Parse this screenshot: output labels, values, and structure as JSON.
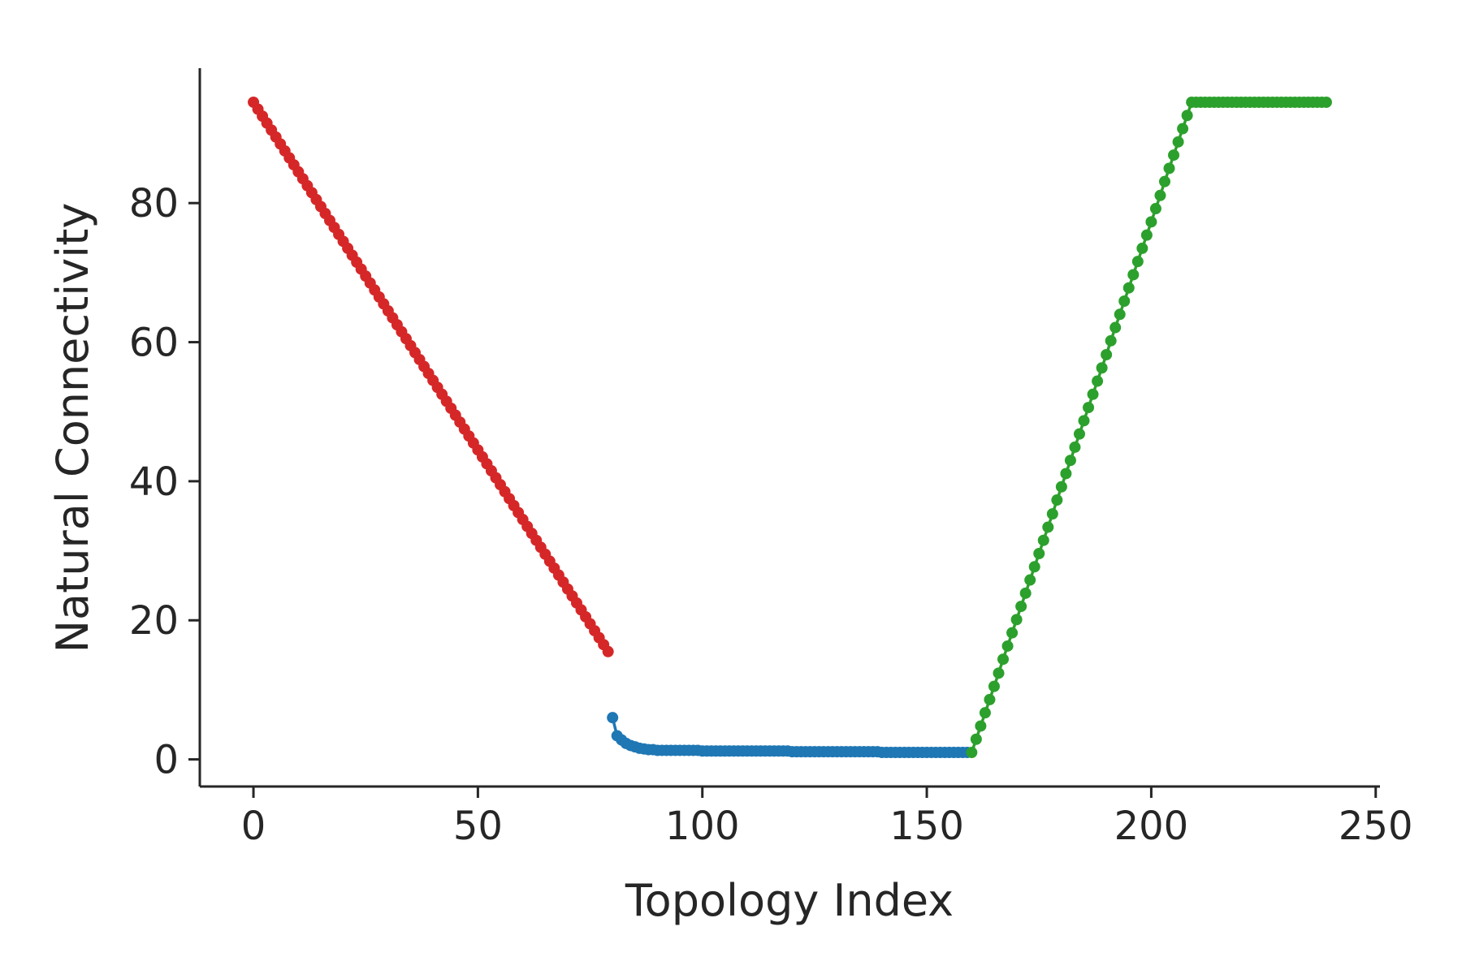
{
  "chart_data": {
    "type": "line",
    "xlabel": "Topology Index",
    "ylabel": "Natural Connectivity",
    "xlim": [
      -11.95,
      250.95
    ],
    "ylim": [
      -3.9,
      99.4
    ],
    "xticks": [
      0,
      50,
      100,
      150,
      200,
      250
    ],
    "yticks": [
      0,
      20,
      40,
      60,
      80
    ],
    "marker": "o",
    "series": [
      {
        "color": "#d62728",
        "x": [
          0,
          1,
          2,
          3,
          4,
          5,
          6,
          7,
          8,
          9,
          10,
          11,
          12,
          13,
          14,
          15,
          16,
          17,
          18,
          19,
          20,
          21,
          22,
          23,
          24,
          25,
          26,
          27,
          28,
          29,
          30,
          31,
          32,
          33,
          34,
          35,
          36,
          37,
          38,
          39,
          40,
          41,
          42,
          43,
          44,
          45,
          46,
          47,
          48,
          49,
          50,
          51,
          52,
          53,
          54,
          55,
          56,
          57,
          58,
          59,
          60,
          61,
          62,
          63,
          64,
          65,
          66,
          67,
          68,
          69,
          70,
          71,
          72,
          73,
          74,
          75,
          76,
          77,
          78,
          79
        ],
        "values": [
          94.5,
          93.5,
          92.5,
          91.5,
          90.5,
          89.5,
          88.5,
          87.5,
          86.5,
          85.5,
          84.5,
          83.5,
          82.5,
          81.5,
          80.5,
          79.5,
          78.5,
          77.5,
          76.5,
          75.5,
          74.5,
          73.5,
          72.5,
          71.5,
          70.5,
          69.5,
          68.5,
          67.5,
          66.5,
          65.5,
          64.5,
          63.5,
          62.5,
          61.5,
          60.5,
          59.5,
          58.5,
          57.5,
          56.5,
          55.5,
          54.5,
          53.5,
          52.5,
          51.5,
          50.5,
          49.5,
          48.5,
          47.5,
          46.5,
          45.5,
          44.5,
          43.5,
          42.5,
          41.5,
          40.5,
          39.5,
          38.5,
          37.5,
          36.5,
          35.5,
          34.5,
          33.5,
          32.5,
          31.5,
          30.5,
          29.5,
          28.5,
          27.5,
          26.5,
          25.5,
          24.5,
          23.5,
          22.5,
          21.5,
          20.5,
          19.5,
          18.5,
          17.5,
          16.5,
          15.5
        ]
      },
      {
        "color": "#1f77b4",
        "x": [
          80,
          81,
          82,
          83,
          84,
          85,
          86,
          87,
          88,
          89,
          90,
          91,
          92,
          93,
          94,
          95,
          96,
          97,
          98,
          99,
          100,
          101,
          102,
          103,
          104,
          105,
          106,
          107,
          108,
          109,
          110,
          111,
          112,
          113,
          114,
          115,
          116,
          117,
          118,
          119,
          120,
          121,
          122,
          123,
          124,
          125,
          126,
          127,
          128,
          129,
          130,
          131,
          132,
          133,
          134,
          135,
          136,
          137,
          138,
          139,
          140,
          141,
          142,
          143,
          144,
          145,
          146,
          147,
          148,
          149,
          150,
          151,
          152,
          153,
          154,
          155,
          156,
          157,
          158,
          159
        ],
        "values": [
          6.0,
          3.4,
          2.8,
          2.3,
          2.0,
          1.8,
          1.6,
          1.5,
          1.4,
          1.4,
          1.3,
          1.3,
          1.3,
          1.3,
          1.3,
          1.3,
          1.3,
          1.3,
          1.3,
          1.3,
          1.2,
          1.2,
          1.2,
          1.2,
          1.2,
          1.2,
          1.2,
          1.2,
          1.2,
          1.2,
          1.2,
          1.2,
          1.2,
          1.2,
          1.2,
          1.2,
          1.2,
          1.2,
          1.2,
          1.2,
          1.1,
          1.1,
          1.1,
          1.1,
          1.1,
          1.1,
          1.1,
          1.1,
          1.1,
          1.1,
          1.1,
          1.1,
          1.1,
          1.1,
          1.1,
          1.1,
          1.1,
          1.1,
          1.1,
          1.1,
          1.0,
          1.0,
          1.0,
          1.0,
          1.0,
          1.0,
          1.0,
          1.0,
          1.0,
          1.0,
          1.0,
          1.0,
          1.0,
          1.0,
          1.0,
          1.0,
          1.0,
          1.0,
          1.0,
          1.0
        ]
      },
      {
        "color": "#2ca02c",
        "x": [
          160,
          161,
          162,
          163,
          164,
          165,
          166,
          167,
          168,
          169,
          170,
          171,
          172,
          173,
          174,
          175,
          176,
          177,
          178,
          179,
          180,
          181,
          182,
          183,
          184,
          185,
          186,
          187,
          188,
          189,
          190,
          191,
          192,
          193,
          194,
          195,
          196,
          197,
          198,
          199,
          200,
          201,
          202,
          203,
          204,
          205,
          206,
          207,
          208,
          209,
          210,
          211,
          212,
          213,
          214,
          215,
          216,
          217,
          218,
          219,
          220,
          221,
          222,
          223,
          224,
          225,
          226,
          227,
          228,
          229,
          230,
          231,
          232,
          233,
          234,
          235,
          236,
          237,
          238,
          239
        ],
        "values": [
          1.0,
          2.9,
          4.8,
          6.7,
          8.6,
          10.5,
          12.4,
          14.4,
          16.3,
          18.2,
          20.1,
          22.0,
          23.9,
          25.8,
          27.7,
          29.6,
          31.5,
          33.4,
          35.3,
          37.3,
          39.2,
          41.1,
          43.0,
          44.9,
          46.8,
          48.7,
          50.6,
          52.5,
          54.4,
          56.3,
          58.2,
          60.2,
          62.1,
          64.0,
          65.9,
          67.8,
          69.7,
          71.6,
          73.5,
          75.4,
          77.3,
          79.2,
          81.1,
          83.1,
          85.0,
          86.9,
          88.8,
          90.7,
          92.6,
          94.5,
          94.5,
          94.5,
          94.5,
          94.5,
          94.5,
          94.5,
          94.5,
          94.5,
          94.5,
          94.5,
          94.5,
          94.5,
          94.5,
          94.5,
          94.5,
          94.5,
          94.5,
          94.5,
          94.5,
          94.5,
          94.5,
          94.5,
          94.5,
          94.5,
          94.5,
          94.5,
          94.5,
          94.5,
          94.5,
          94.5
        ]
      }
    ]
  }
}
